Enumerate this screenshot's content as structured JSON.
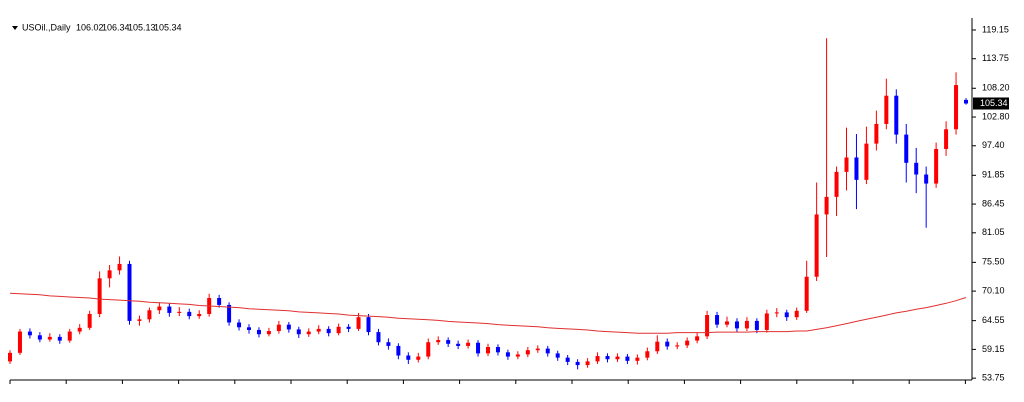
{
  "chart_data": {
    "type": "candlestick",
    "title": "USOil.,Daily",
    "up_color": "#ff0000",
    "down_color": "#0000ff",
    "open": [
      56.9,
      58.5,
      62.5,
      61.8,
      61.0,
      61.5,
      60.8,
      62.5,
      63.2,
      65.8,
      72.5,
      74.0,
      75.2,
      64.5,
      64.8,
      66.5,
      67.2,
      66.0,
      66.2,
      65.4,
      65.8,
      68.8,
      67.5,
      64.2,
      63.3,
      62.8,
      62.0,
      62.6,
      63.8,
      62.9,
      62.0,
      62.5,
      63.0,
      62.2,
      63.4,
      63.0,
      65.2,
      62.4,
      60.5,
      59.8,
      58.0,
      57.2,
      57.8,
      60.5,
      60.9,
      60.2,
      59.8,
      60.4,
      58.4,
      59.6,
      58.6,
      57.8,
      58.2,
      59.0,
      59.3,
      58.4,
      57.6,
      56.8,
      56.2,
      56.9,
      57.9,
      57.3,
      57.8,
      57.0,
      57.6,
      58.8,
      60.6,
      59.7,
      59.9,
      60.8,
      61.6,
      65.6,
      63.8,
      64.4,
      63.1,
      64.5,
      62.8,
      65.9,
      66.1,
      65.2,
      66.4,
      72.8,
      84.5,
      87.8,
      92.5,
      95.2,
      91.0,
      97.8,
      101.5,
      106.8,
      99.5,
      94.2,
      92.0,
      90.3,
      96.8,
      100.5,
      106.02
    ],
    "high": [
      59.0,
      63.0,
      63.1,
      62.4,
      62.2,
      62.0,
      63.0,
      63.9,
      66.4,
      73.8,
      75.0,
      76.6,
      75.8,
      65.5,
      67.0,
      68.0,
      67.8,
      67.1,
      66.8,
      66.5,
      69.6,
      69.4,
      68.0,
      64.8,
      63.9,
      63.3,
      63.2,
      64.5,
      64.3,
      63.4,
      63.1,
      63.7,
      63.5,
      64.0,
      63.9,
      66.0,
      65.8,
      63.0,
      61.2,
      60.3,
      58.6,
      58.5,
      61.2,
      61.6,
      61.4,
      60.8,
      61.0,
      60.9,
      60.2,
      60.1,
      59.1,
      58.8,
      59.6,
      59.9,
      59.8,
      58.9,
      58.1,
      57.3,
      57.5,
      58.6,
      58.4,
      58.4,
      58.3,
      58.2,
      59.5,
      61.8,
      61.2,
      60.5,
      61.4,
      62.3,
      66.4,
      66.2,
      65.3,
      65.0,
      65.2,
      65.0,
      66.6,
      66.9,
      66.6,
      67.0,
      75.8,
      90.5,
      117.6,
      93.5,
      100.8,
      99.6,
      101.0,
      104.0,
      110.0,
      108.0,
      101.5,
      97.0,
      93.5,
      98.0,
      102.0,
      111.2,
      106.34
    ],
    "low": [
      56.4,
      58.1,
      61.2,
      60.5,
      60.6,
      60.2,
      60.4,
      62.0,
      62.8,
      65.2,
      70.8,
      73.2,
      63.8,
      63.6,
      64.2,
      65.8,
      65.3,
      65.4,
      64.8,
      64.9,
      65.3,
      67.0,
      63.6,
      62.7,
      62.1,
      61.4,
      61.6,
      62.1,
      62.3,
      61.3,
      61.5,
      62.0,
      61.6,
      61.8,
      62.4,
      62.6,
      61.8,
      59.9,
      59.1,
      57.3,
      56.4,
      56.7,
      57.3,
      60.0,
      59.6,
      59.2,
      59.3,
      57.8,
      57.9,
      58.0,
      57.2,
      57.3,
      57.7,
      58.5,
      57.8,
      57.0,
      56.2,
      55.4,
      55.7,
      56.4,
      56.7,
      56.8,
      56.4,
      56.3,
      57.1,
      58.3,
      59.1,
      59.2,
      59.4,
      60.3,
      61.1,
      63.2,
      63.3,
      62.4,
      62.6,
      62.2,
      62.3,
      65.2,
      64.5,
      64.7,
      66.0,
      72.0,
      76.5,
      84.2,
      89.0,
      85.5,
      90.2,
      96.5,
      100.5,
      97.8,
      90.5,
      88.5,
      82.0,
      89.5,
      95.5,
      99.5,
      105.13
    ],
    "close": [
      58.5,
      62.5,
      61.8,
      61.0,
      61.5,
      60.8,
      62.5,
      63.2,
      65.8,
      72.5,
      74.0,
      75.2,
      64.5,
      64.8,
      66.5,
      67.2,
      66.0,
      66.2,
      65.4,
      65.8,
      68.8,
      67.5,
      64.2,
      63.3,
      62.8,
      62.0,
      62.6,
      63.8,
      62.9,
      62.0,
      62.5,
      63.0,
      62.2,
      63.4,
      63.0,
      65.2,
      62.4,
      60.5,
      59.8,
      58.0,
      57.2,
      57.8,
      60.5,
      60.9,
      60.2,
      59.8,
      60.4,
      58.4,
      59.6,
      58.6,
      57.8,
      58.2,
      59.0,
      59.3,
      58.4,
      57.6,
      56.8,
      56.2,
      56.9,
      57.9,
      57.3,
      57.8,
      57.0,
      57.6,
      58.8,
      60.6,
      59.7,
      59.9,
      60.8,
      61.6,
      65.6,
      63.8,
      64.4,
      63.1,
      64.5,
      62.8,
      65.9,
      66.1,
      65.2,
      66.4,
      72.8,
      84.5,
      87.8,
      92.5,
      95.2,
      91.0,
      97.8,
      101.5,
      106.8,
      99.5,
      94.2,
      92.0,
      90.3,
      96.8,
      100.5,
      108.8,
      105.34
    ],
    "ma": {
      "color": "#e03030",
      "values": [
        69.7,
        69.6,
        69.5,
        69.4,
        69.2,
        69.1,
        69.0,
        68.9,
        68.8,
        68.6,
        68.5,
        68.4,
        68.3,
        68.2,
        68.0,
        67.9,
        67.8,
        67.7,
        67.6,
        67.4,
        67.3,
        67.2,
        67.1,
        67.0,
        66.8,
        66.7,
        66.6,
        66.5,
        66.4,
        66.2,
        66.1,
        66.0,
        65.9,
        65.8,
        65.6,
        65.5,
        65.4,
        65.3,
        65.2,
        65.0,
        64.9,
        64.8,
        64.7,
        64.6,
        64.4,
        64.3,
        64.2,
        64.1,
        64.0,
        63.8,
        63.7,
        63.6,
        63.5,
        63.4,
        63.2,
        63.1,
        63.0,
        62.9,
        62.8,
        62.6,
        62.5,
        62.4,
        62.3,
        62.2,
        62.2,
        62.2,
        62.2,
        62.3,
        62.3,
        62.3,
        62.3,
        62.4,
        62.4,
        62.4,
        62.4,
        62.5,
        62.5,
        62.5,
        62.5,
        62.6,
        62.6,
        62.9,
        63.2,
        63.6,
        64.0,
        64.4,
        64.8,
        65.2,
        65.6,
        66.0,
        66.3,
        66.7,
        67.0,
        67.4,
        67.8,
        68.3,
        68.9
      ]
    },
    "ylim": [
      53.4,
      121.4
    ],
    "yticks": [
      {
        "value": 53.75,
        "label": "53.75"
      },
      59.15,
      64.55,
      {
        "value": 70.1,
        "label": "70.10"
      },
      {
        "value": 75.5,
        "label": "75.50"
      },
      81.05,
      86.45,
      91.85,
      {
        "value": 97.4,
        "label": "97.40"
      },
      {
        "value": 102.8,
        "label": "102.80"
      },
      {
        "value": 108.2,
        "label": "108.20"
      },
      113.75,
      119.15
    ],
    "grid": false
  }
}
